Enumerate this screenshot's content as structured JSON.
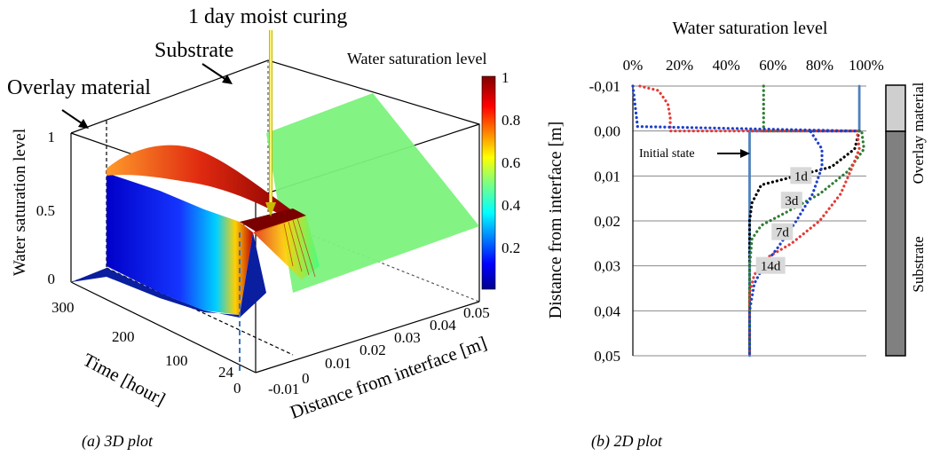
{
  "figure": {
    "caption_a": "(a) 3D plot",
    "caption_b": "(b) 2D plot"
  },
  "plot3d": {
    "annotations": {
      "moist_curing": "1 day moist curing",
      "substrate": "Substrate",
      "overlay": "Overlay material"
    },
    "zlabel": "Water saturation level",
    "z_ticks": [
      "0",
      "0.5",
      "1"
    ],
    "ylabel": "Time [hour]",
    "y_ticks": [
      "300",
      "200",
      "100",
      "24",
      "0"
    ],
    "xlabel": "Distance from interface [m]",
    "x_ticks": [
      "-0.01",
      "0",
      "0.01",
      "0.02",
      "0.03",
      "0.04",
      "0.05"
    ],
    "colorbar": {
      "title": "Water saturation level",
      "ticks": [
        "1",
        "0.8",
        "0.6",
        "0.4",
        "0.2"
      ]
    }
  },
  "chart_data": {
    "type": "line",
    "title": "Water saturation level",
    "xlabel": "Water saturation level",
    "ylabel": "Distance from interface [m]",
    "x_ticks": [
      "0%",
      "20%",
      "40%",
      "60%",
      "80%",
      "100%"
    ],
    "y_ticks": [
      "-0,01",
      "0,00",
      "0,01",
      "0,02",
      "0,03",
      "0,04",
      "0,05"
    ],
    "xlim": [
      0,
      100
    ],
    "ylim": [
      -0.01,
      0.05
    ],
    "y_inverted": true,
    "initial_state_label": "Initial state",
    "layer_labels": {
      "overlay": "Overlay material",
      "substrate": "Substrate"
    },
    "series": [
      {
        "name": "Initial state",
        "color": "#4f81bd",
        "dash": "solid",
        "x": [
          97,
          97,
          50,
          50
        ],
        "y": [
          -0.01,
          0.0,
          0.0,
          0.05
        ]
      },
      {
        "name": "1d",
        "color": "#000000",
        "dash": "dot",
        "x": [
          97,
          95,
          85,
          70,
          55,
          51,
          50,
          50
        ],
        "y": [
          0.0,
          0.004,
          0.008,
          0.01,
          0.012,
          0.016,
          0.02,
          0.05
        ]
      },
      {
        "name": "3d",
        "color": "#2e7d32",
        "dash": "dot",
        "x": [
          56,
          56,
          98,
          99,
          92,
          80,
          66,
          55,
          51,
          50,
          50
        ],
        "y": [
          -0.01,
          0.0,
          0.0,
          0.004,
          0.009,
          0.014,
          0.018,
          0.021,
          0.024,
          0.03,
          0.05
        ]
      },
      {
        "name": "7d",
        "color": "#e53935",
        "dash": "dot",
        "x": [
          3,
          11,
          15,
          16,
          16,
          96,
          97,
          94,
          89,
          80,
          68,
          58,
          52,
          50,
          50
        ],
        "y": [
          -0.01,
          -0.009,
          -0.006,
          -0.003,
          0.0,
          0.0,
          0.004,
          0.008,
          0.014,
          0.02,
          0.025,
          0.028,
          0.032,
          0.036,
          0.05
        ]
      },
      {
        "name": "14d",
        "color": "#1e40c8",
        "dash": "dot",
        "x": [
          0,
          2,
          96,
          96,
          76,
          81,
          81,
          77,
          70,
          62,
          56,
          52,
          50,
          50
        ],
        "y": [
          -0.01,
          -0.001,
          0.0,
          0.0,
          0.0,
          0.004,
          0.008,
          0.014,
          0.02,
          0.026,
          0.03,
          0.034,
          0.04,
          0.05
        ]
      }
    ],
    "point_labels": [
      {
        "text": "1d",
        "x": 72,
        "y": 0.01
      },
      {
        "text": "3d",
        "x": 68,
        "y": 0.0155
      },
      {
        "text": "7d",
        "x": 64,
        "y": 0.0225
      },
      {
        "text": "14d",
        "x": 59,
        "y": 0.03
      }
    ]
  }
}
